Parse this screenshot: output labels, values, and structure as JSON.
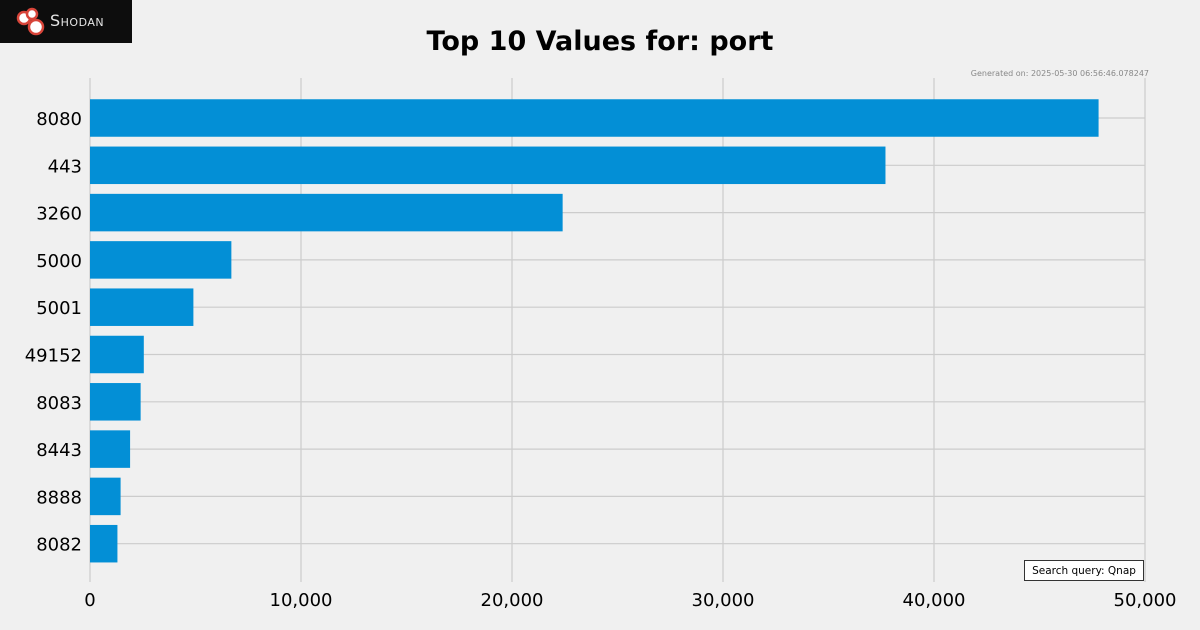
{
  "branding": {
    "logo_text": "Shodan"
  },
  "chart_data": {
    "type": "bar",
    "orientation": "horizontal",
    "title": "Top 10 Values for: port",
    "categories": [
      "8080",
      "443",
      "3260",
      "5000",
      "5001",
      "49152",
      "8083",
      "8443",
      "8888",
      "8082"
    ],
    "values": [
      47800,
      37700,
      22400,
      6700,
      4900,
      2550,
      2400,
      1900,
      1450,
      1300
    ],
    "xlim": [
      0,
      50000
    ],
    "xticks": [
      0,
      10000,
      20000,
      30000,
      40000,
      50000
    ],
    "xtick_labels": [
      "0",
      "10,000",
      "20,000",
      "30,000",
      "40,000",
      "50,000"
    ],
    "xlabel": "",
    "ylabel": "",
    "grid": true,
    "bar_color": "#038fd6",
    "grid_color": "#cccccc",
    "background_color": "#f0f0f0"
  },
  "footer": {
    "generated": "Generated on: 2025-05-30 06:56:46.078247",
    "query": "Search query: Qnap"
  }
}
